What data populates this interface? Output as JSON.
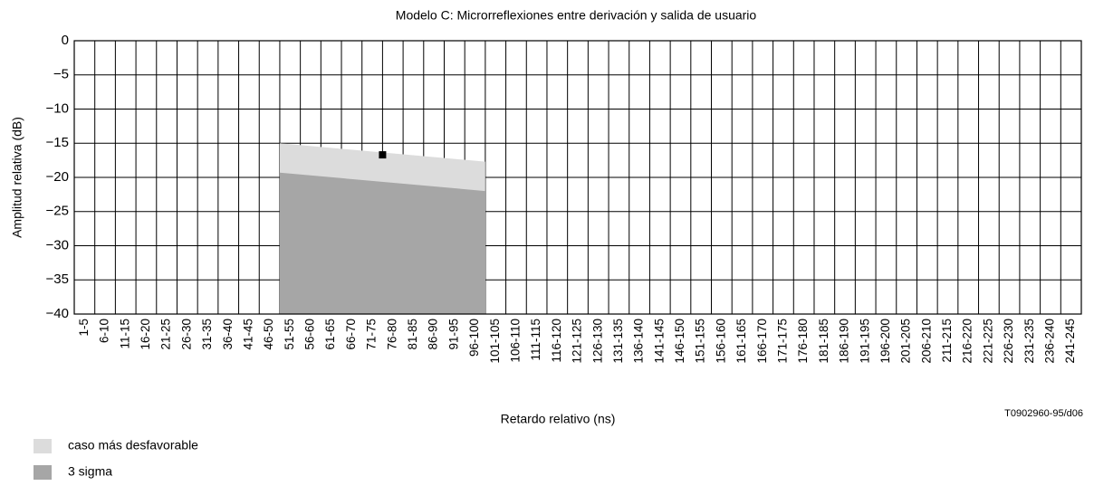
{
  "chart_data": {
    "type": "area",
    "title": "Modelo C: Microrreflexiones entre derivación y salida de usuario",
    "xlabel": "Retardo relativo (ns)",
    "ylabel": "Amplitud relativa (dB)",
    "annotation": "T0902960-95/d06",
    "categories": [
      "1-5",
      "6-10",
      "11-15",
      "16-20",
      "21-25",
      "26-30",
      "31-35",
      "36-40",
      "41-45",
      "46-50",
      "51-55",
      "56-60",
      "61-65",
      "66-70",
      "71-75",
      "76-80",
      "81-85",
      "86-90",
      "91-95",
      "96-100",
      "101-105",
      "106-110",
      "111-115",
      "116-120",
      "121-125",
      "126-130",
      "131-135",
      "136-140",
      "141-145",
      "146-150",
      "151-155",
      "156-160",
      "161-165",
      "166-170",
      "171-175",
      "176-180",
      "181-185",
      "186-190",
      "191-195",
      "196-200",
      "201-205",
      "206-210",
      "211-215",
      "216-220",
      "221-225",
      "226-230",
      "231-235",
      "236-240",
      "241-245"
    ],
    "xlim": [
      0,
      245
    ],
    "ylim": [
      -40,
      0
    ],
    "yticks": [
      0,
      {
        "value": -5,
        "label": "−5"
      },
      {
        "value": -10,
        "label": "−10"
      },
      {
        "value": -15,
        "label": "−15"
      },
      {
        "value": -20,
        "label": "−20"
      },
      {
        "value": -25,
        "label": "−25"
      },
      {
        "value": -30,
        "label": "−30"
      },
      {
        "value": -35,
        "label": "−35"
      },
      {
        "value": -40,
        "label": "−40"
      }
    ],
    "grid": true,
    "series": [
      {
        "name": "caso más desfavorable",
        "color": "#dcdcdc",
        "x": [
          50,
          100
        ],
        "values": [
          -15,
          -17.7
        ]
      },
      {
        "name": "3 sigma",
        "color": "#a6a6a6",
        "x": [
          50,
          100
        ],
        "values": [
          -19.3,
          -22
        ]
      }
    ],
    "points": {
      "color": "#000000",
      "x": [
        75
      ],
      "values": [
        -16.7
      ]
    }
  }
}
